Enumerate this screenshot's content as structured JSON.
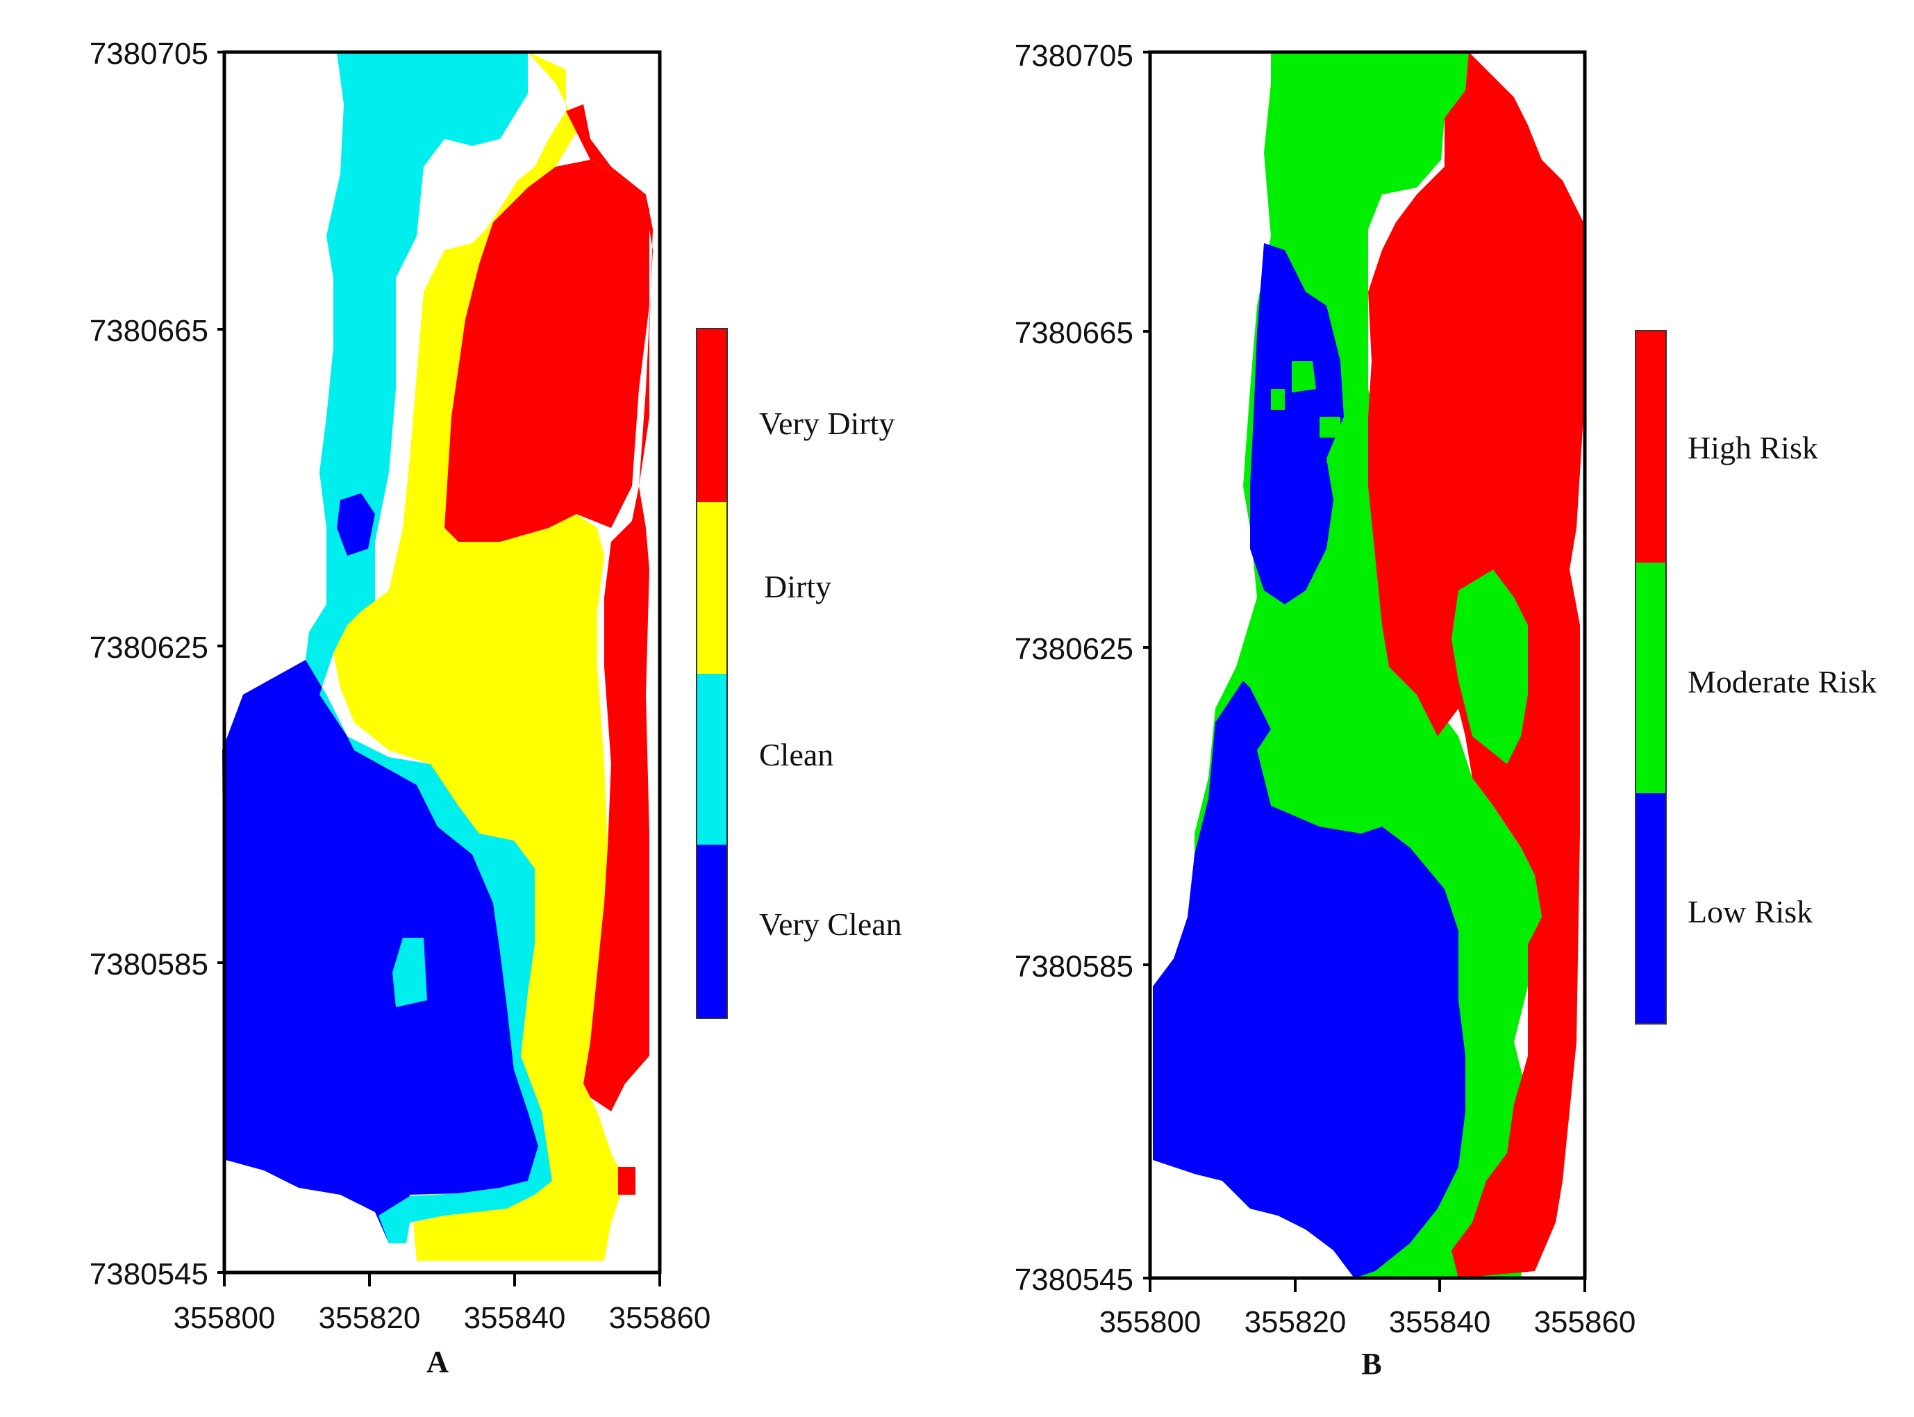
{
  "colors": {
    "very_dirty": "#ff0000",
    "dirty": "#ffff00",
    "clean": "#00eeee",
    "very_clean": "#0000ff",
    "high_risk": "#ff0000",
    "moderate_risk": "#00ee00",
    "low_risk": "#0000ff",
    "frame": "#000000"
  },
  "panels": [
    {
      "label": "A",
      "xlim": [
        355800,
        355860
      ],
      "ylim": [
        7380545,
        7380705
      ],
      "x_ticks": [
        "355800",
        "355820",
        "355840",
        "355860"
      ],
      "y_ticks": [
        "7380705",
        "7380665",
        "7380625",
        "7380585",
        "7380545"
      ],
      "legend": [
        "Very Dirty",
        "Dirty",
        "Clean",
        "Very Clean"
      ]
    },
    {
      "label": "B",
      "xlim": [
        355800,
        355860
      ],
      "ylim": [
        7380545,
        7380705
      ],
      "x_ticks": [
        "355800",
        "355820",
        "355840",
        "355860"
      ],
      "y_ticks": [
        "7380705",
        "7380665",
        "7380625",
        "7380585",
        "7380545"
      ],
      "legend": [
        "High Risk",
        "Moderate Risk",
        "Low Risk"
      ]
    }
  ]
}
